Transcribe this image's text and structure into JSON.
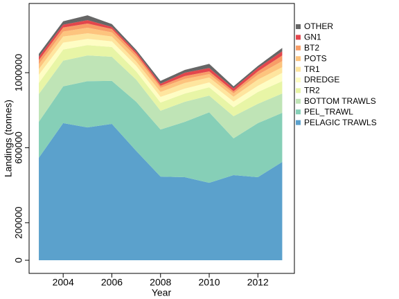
{
  "chart_data": {
    "type": "stacked_area",
    "xlabel": "Year",
    "ylabel": "Landings (tonnes)",
    "x": [
      2003,
      2004,
      2005,
      2006,
      2007,
      2008,
      2009,
      2010,
      2011,
      2012,
      2013
    ],
    "xlim": [
      2002.6,
      2013.5
    ],
    "xticks": [
      2004,
      2006,
      2008,
      2010,
      2012
    ],
    "ylim": [
      -70000,
      1369000
    ],
    "yticks": [
      0,
      200000,
      600000,
      1000000
    ],
    "legend": "right",
    "series": [
      {
        "name": "PELAGIC TRAWLS",
        "color": "#5ba1cc",
        "values": [
          546000,
          731000,
          708000,
          727000,
          583000,
          446000,
          443000,
          413000,
          454000,
          443000,
          524000
        ]
      },
      {
        "name": "PEL_TRAWL",
        "color": "#86cfb7",
        "values": [
          192000,
          196000,
          247000,
          229000,
          262000,
          251000,
          295000,
          376000,
          196000,
          288000,
          262000
        ]
      },
      {
        "name": "BOTTOM TRAWLS",
        "color": "#bfe4b6",
        "values": [
          148000,
          137000,
          137000,
          129000,
          118000,
          100000,
          107000,
          89000,
          118000,
          103000,
          103000
        ]
      },
      {
        "name": "TR2",
        "color": "#e8f5a6",
        "values": [
          59000,
          59000,
          55000,
          52000,
          44000,
          44000,
          44000,
          44000,
          48000,
          63000,
          66000
        ]
      },
      {
        "name": "DREDGE",
        "color": "#fefdc4",
        "values": [
          44000,
          37000,
          33000,
          30000,
          30000,
          30000,
          26000,
          26000,
          30000,
          33000,
          44000
        ]
      },
      {
        "name": "TR1",
        "color": "#fee59e",
        "values": [
          30000,
          33000,
          30000,
          26000,
          22000,
          26000,
          30000,
          26000,
          26000,
          33000,
          30000
        ]
      },
      {
        "name": "POTS",
        "color": "#fdc47e",
        "values": [
          26000,
          26000,
          30000,
          22000,
          26000,
          22000,
          22000,
          18000,
          18000,
          26000,
          33000
        ]
      },
      {
        "name": "BT2",
        "color": "#f89d67",
        "values": [
          22000,
          22000,
          22000,
          18000,
          15000,
          11000,
          15000,
          15000,
          11000,
          18000,
          30000
        ]
      },
      {
        "name": "GN1",
        "color": "#e3464c",
        "values": [
          18000,
          15000,
          18000,
          11000,
          11000,
          11000,
          18000,
          18000,
          15000,
          18000,
          22000
        ]
      },
      {
        "name": "OTHER",
        "color": "#666666",
        "values": [
          15000,
          18000,
          26000,
          15000,
          11000,
          15000,
          15000,
          22000,
          11000,
          11000,
          18000
        ]
      }
    ]
  }
}
